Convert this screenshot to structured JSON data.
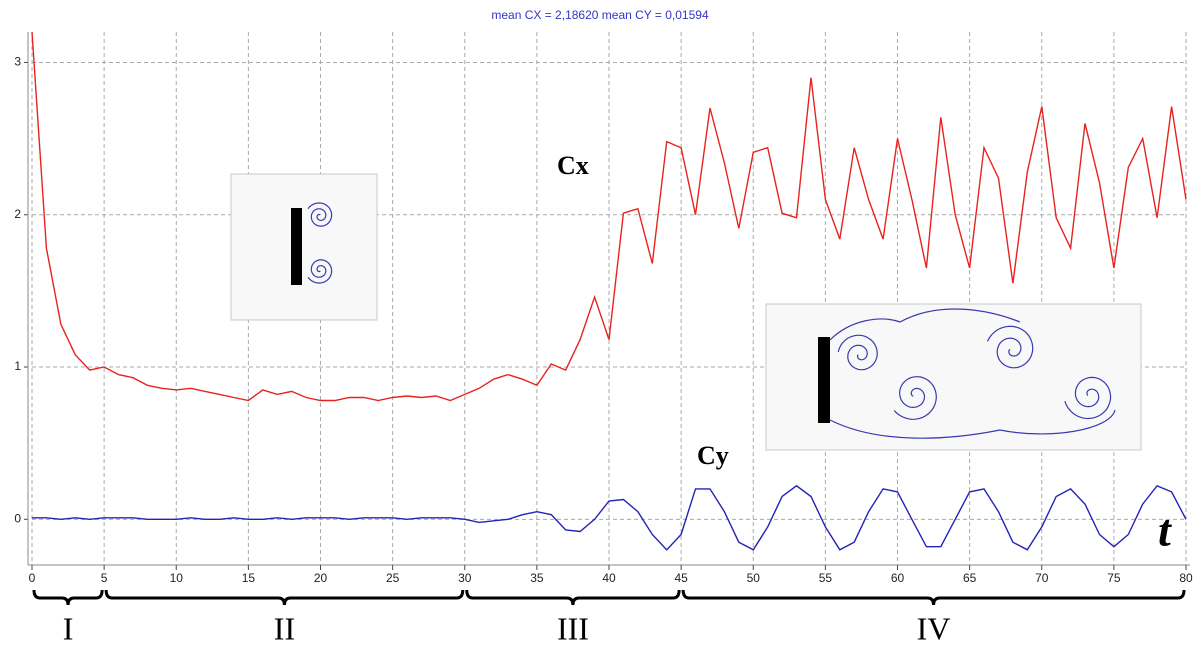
{
  "chart_data": {
    "type": "line",
    "title": "mean CX = 2,18620     mean CY = 0,01594",
    "x": [
      0,
      1,
      2,
      3,
      4,
      5,
      6,
      7,
      8,
      9,
      10,
      11,
      12,
      13,
      14,
      15,
      16,
      17,
      18,
      19,
      20,
      21,
      22,
      23,
      24,
      25,
      26,
      27,
      28,
      29,
      30,
      31,
      32,
      33,
      34,
      35,
      36,
      37,
      38,
      39,
      40,
      41,
      42,
      43,
      44,
      45,
      46,
      47,
      48,
      49,
      50,
      51,
      52,
      53,
      54,
      55,
      56,
      57,
      58,
      59,
      60,
      61,
      62,
      63,
      64,
      65,
      66,
      67,
      68,
      69,
      70,
      71,
      72,
      73,
      74,
      75,
      76,
      77,
      78,
      79,
      80
    ],
    "series": [
      {
        "name": "Cx",
        "color": "#e8231f",
        "values": [
          3.2,
          1.78,
          1.28,
          1.08,
          0.98,
          1.0,
          0.95,
          0.93,
          0.88,
          0.86,
          0.85,
          0.86,
          0.84,
          0.82,
          0.8,
          0.78,
          0.85,
          0.82,
          0.84,
          0.8,
          0.78,
          0.78,
          0.8,
          0.8,
          0.78,
          0.8,
          0.81,
          0.8,
          0.81,
          0.78,
          0.82,
          0.86,
          0.92,
          0.95,
          0.92,
          0.88,
          1.02,
          0.98,
          1.18,
          1.46,
          1.18,
          2.01,
          2.04,
          1.68,
          2.48,
          2.44,
          2.0,
          2.7,
          2.34,
          1.91,
          2.41,
          2.44,
          2.01,
          1.98,
          2.9,
          2.1,
          1.84,
          2.44,
          2.1,
          1.84,
          2.5,
          2.1,
          1.65,
          2.64,
          2.0,
          1.65,
          2.44,
          2.24,
          1.55,
          2.28,
          2.71,
          1.98,
          1.78,
          2.6,
          2.21,
          1.65,
          2.31,
          2.5,
          1.98,
          2.71,
          2.1
        ]
      },
      {
        "name": "Cy",
        "color": "#2323b8",
        "values": [
          0.01,
          0.01,
          0.0,
          0.01,
          0.0,
          0.01,
          0.01,
          0.01,
          0.0,
          0.0,
          0.0,
          0.01,
          0.0,
          0.0,
          0.01,
          0.0,
          0.0,
          0.01,
          0.0,
          0.01,
          0.01,
          0.01,
          0.0,
          0.01,
          0.01,
          0.01,
          0.0,
          0.01,
          0.01,
          0.01,
          0.0,
          -0.02,
          -0.01,
          0.0,
          0.03,
          0.05,
          0.03,
          -0.07,
          -0.08,
          0.0,
          0.12,
          0.13,
          0.05,
          -0.1,
          -0.2,
          -0.1,
          0.2,
          0.2,
          0.05,
          -0.15,
          -0.2,
          -0.05,
          0.15,
          0.22,
          0.15,
          -0.05,
          -0.2,
          -0.15,
          0.05,
          0.2,
          0.18,
          0.0,
          -0.18,
          -0.18,
          0.0,
          0.18,
          0.2,
          0.05,
          -0.15,
          -0.2,
          -0.05,
          0.15,
          0.2,
          0.1,
          -0.1,
          -0.18,
          -0.1,
          0.1,
          0.22,
          0.18,
          0.0
        ]
      }
    ],
    "xlim": [
      0,
      80
    ],
    "xticks": [
      0,
      5,
      10,
      15,
      20,
      25,
      30,
      35,
      40,
      45,
      50,
      55,
      60,
      65,
      70,
      75,
      80
    ],
    "ylim": [
      -0.3,
      3.2
    ],
    "yticks": [
      0,
      1,
      2,
      3
    ],
    "grid": true,
    "annotations": [
      "Cx",
      "Cy",
      "t"
    ],
    "phases": [
      {
        "label": "I",
        "start": 0,
        "end": 5
      },
      {
        "label": "II",
        "start": 5,
        "end": 30
      },
      {
        "label": "III",
        "start": 30,
        "end": 45
      },
      {
        "label": "IV",
        "start": 45,
        "end": 80
      }
    ]
  }
}
